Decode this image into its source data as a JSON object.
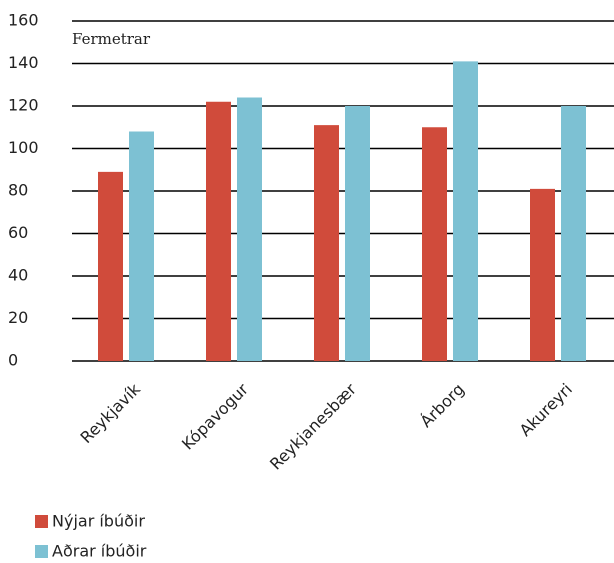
{
  "chart_data": {
    "type": "bar",
    "subtitle": "Fermetrar",
    "categories": [
      "Reykjavík",
      "Kópavogur",
      "Reykjanesbær",
      "Árborg",
      "Akureyri"
    ],
    "series": [
      {
        "name": "Nýjar íbúðir",
        "color": "#d04b3b",
        "values": [
          89,
          122,
          111,
          110,
          81
        ]
      },
      {
        "name": "Aðrar íbúðir",
        "color": "#7dc1d3",
        "values": [
          108,
          124,
          120,
          141,
          120
        ]
      }
    ],
    "ylim": [
      0,
      160
    ],
    "yticks": [
      0,
      20,
      40,
      60,
      80,
      100,
      120,
      140,
      160
    ],
    "grid": true
  }
}
